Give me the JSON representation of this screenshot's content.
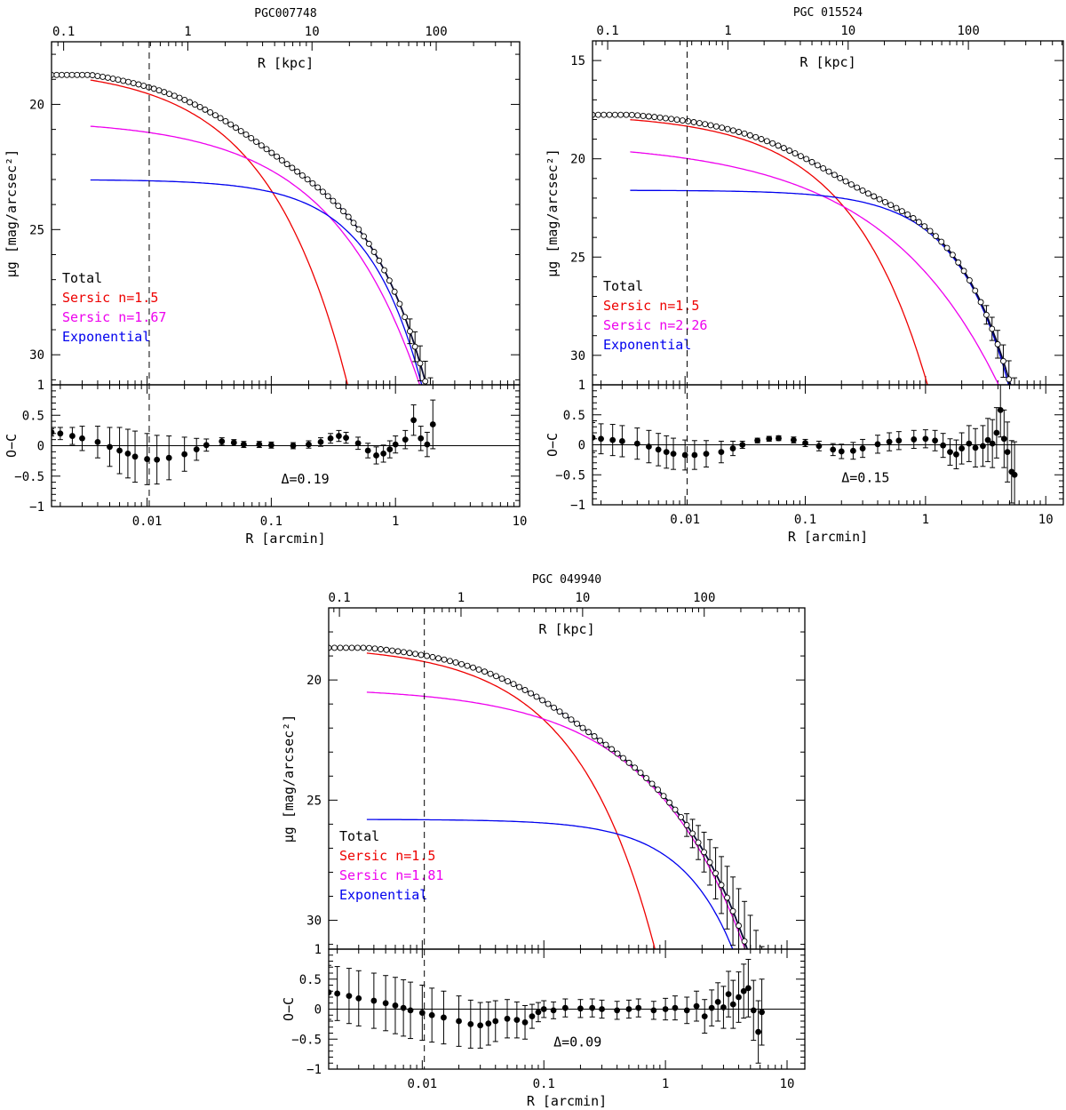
{
  "chart_data": [
    {
      "type": "line",
      "title": "PGC007748",
      "top_axis_label": "R [kpc]",
      "top_ticks": [
        0.1,
        1,
        10,
        100
      ],
      "top_tick_labels": [
        "0.1",
        "1",
        "10",
        "100"
      ],
      "kpc_per_arcmin": 47,
      "ylabel": "μg [mag/arcsec²]",
      "xlabel": "R [arcmin]",
      "residual_ylabel": "O−C",
      "xlim": [
        0.0017,
        10
      ],
      "ylim": [
        31.2,
        17.5
      ],
      "yticks": [
        20,
        25,
        30
      ],
      "ytick_labels": [
        "20",
        "25",
        "30"
      ],
      "residual_ylim": [
        -1,
        1
      ],
      "residual_yticks": [
        -1,
        -0.5,
        0,
        0.5,
        1
      ],
      "residual_ytick_labels": [
        "−1",
        "−0.5",
        "0",
        "0.5",
        "1"
      ],
      "xticks": [
        0.01,
        0.1,
        1,
        10
      ],
      "xtick_labels": [
        "0.01",
        "0.1",
        "1",
        "10"
      ],
      "vline_x": 0.0104,
      "delta_label": "Δ=0.19",
      "delta_x": 0.12,
      "log_x": true,
      "legend": [
        {
          "label": "Total",
          "color": "#000000"
        },
        {
          "label": "Sersic n=1.5",
          "color": "#ee0000"
        },
        {
          "label": "Sersic n=1.67",
          "color": "#ee00ee"
        },
        {
          "label": "Exponential",
          "color": "#0000ee"
        }
      ],
      "series": [
        {
          "name": "Sersic n=1.5",
          "color": "#ee0000",
          "mu0": 18.5,
          "re": 0.045,
          "n": 1.5,
          "x_start": 0.0035,
          "x_end": 10
        },
        {
          "name": "Sersic n=1.67",
          "color": "#ee00ee",
          "mu0": 20.6,
          "re": 0.22,
          "n": 1.67,
          "x_start": 0.0035,
          "x_end": 10
        },
        {
          "name": "Exponential",
          "color": "#0000ee",
          "mu0": 23.0,
          "re": 0.36,
          "n": 1,
          "x_start": 0.0035,
          "x_end": 10
        }
      ],
      "data_x_range": [
        0.0017,
        2.1
      ],
      "data_err_from_x": 1.2,
      "residual_points": [
        [
          0.0017,
          0.22
        ],
        [
          0.002,
          0.2
        ],
        [
          0.0025,
          0.16
        ],
        [
          0.003,
          0.12
        ],
        [
          0.004,
          0.06
        ],
        [
          0.005,
          -0.02
        ],
        [
          0.006,
          -0.08
        ],
        [
          0.007,
          -0.13
        ],
        [
          0.008,
          -0.18
        ],
        [
          0.01,
          -0.22
        ],
        [
          0.012,
          -0.23
        ],
        [
          0.015,
          -0.2
        ],
        [
          0.02,
          -0.14
        ],
        [
          0.025,
          -0.06
        ],
        [
          0.03,
          0.01
        ],
        [
          0.04,
          0.07
        ],
        [
          0.05,
          0.05
        ],
        [
          0.06,
          0.02
        ],
        [
          0.08,
          0.02
        ],
        [
          0.1,
          0.01
        ],
        [
          0.15,
          0.0
        ],
        [
          0.2,
          0.02
        ],
        [
          0.25,
          0.06
        ],
        [
          0.3,
          0.12
        ],
        [
          0.35,
          0.16
        ],
        [
          0.4,
          0.13
        ],
        [
          0.5,
          0.04
        ],
        [
          0.6,
          -0.08
        ],
        [
          0.7,
          -0.16
        ],
        [
          0.8,
          -0.13
        ],
        [
          0.9,
          -0.06
        ],
        [
          1.0,
          0.02
        ],
        [
          1.2,
          0.1
        ],
        [
          1.4,
          0.42
        ],
        [
          1.6,
          0.12
        ],
        [
          1.8,
          0.02
        ],
        [
          2.0,
          0.35
        ]
      ],
      "residual_err": [
        0.06,
        0.1,
        0.14,
        0.2,
        0.26,
        0.32,
        0.38,
        0.4,
        0.42,
        0.42,
        0.4,
        0.36,
        0.28,
        0.18,
        0.1,
        0.06,
        0.05,
        0.05,
        0.05,
        0.05,
        0.05,
        0.06,
        0.07,
        0.08,
        0.09,
        0.09,
        0.1,
        0.12,
        0.14,
        0.14,
        0.14,
        0.14,
        0.15,
        0.25,
        0.2,
        0.2,
        0.4
      ]
    },
    {
      "type": "line",
      "title": "PGC 015524",
      "top_axis_label": "R [kpc]",
      "top_ticks": [
        0.1,
        1,
        10,
        100
      ],
      "top_tick_labels": [
        "0.1",
        "1",
        "10",
        "100"
      ],
      "kpc_per_arcmin": 44,
      "ylabel": "μg [mag/arcsec²]",
      "xlabel": "R [arcmin]",
      "residual_ylabel": "O−C",
      "xlim": [
        0.0017,
        14
      ],
      "ylim": [
        31.5,
        14.0
      ],
      "yticks": [
        15,
        20,
        25,
        30
      ],
      "ytick_labels": [
        "15",
        "20",
        "25",
        "30"
      ],
      "residual_ylim": [
        -1,
        1
      ],
      "residual_yticks": [
        -1,
        -0.5,
        0,
        0.5,
        1
      ],
      "residual_ytick_labels": [
        "−1",
        "−0.5",
        "0",
        "0.5",
        "1"
      ],
      "xticks": [
        0.01,
        0.1,
        1,
        10
      ],
      "xtick_labels": [
        "0.01",
        "0.1",
        "1",
        "10"
      ],
      "vline_x": 0.0104,
      "delta_label": "Δ=0.15",
      "delta_x": 0.2,
      "log_x": true,
      "legend": [
        {
          "label": "Total",
          "color": "#000000"
        },
        {
          "label": "Sersic n=1.5",
          "color": "#ee0000"
        },
        {
          "label": "Sersic n=2.26",
          "color": "#ee00ee"
        },
        {
          "label": "Exponential",
          "color": "#0000ee"
        }
      ],
      "series": [
        {
          "name": "Sersic n=1.5",
          "color": "#ee0000",
          "mu0": 17.7,
          "re": 0.1,
          "n": 1.5,
          "x_start": 0.0035,
          "x_end": 14
        },
        {
          "name": "Sersic n=2.26",
          "color": "#ee00ee",
          "mu0": 19.1,
          "re": 0.42,
          "n": 2.26,
          "x_start": 0.0035,
          "x_end": 14
        },
        {
          "name": "Exponential",
          "color": "#0000ee",
          "mu0": 21.6,
          "re": 0.9,
          "n": 1,
          "x_start": 0.0035,
          "x_end": 14
        }
      ],
      "data_x_range": [
        0.0017,
        5.5
      ],
      "data_err_from_x": 3.0,
      "residual_points": [
        [
          0.0017,
          0.12
        ],
        [
          0.002,
          0.1
        ],
        [
          0.0025,
          0.08
        ],
        [
          0.003,
          0.06
        ],
        [
          0.004,
          0.02
        ],
        [
          0.005,
          -0.03
        ],
        [
          0.006,
          -0.08
        ],
        [
          0.007,
          -0.12
        ],
        [
          0.008,
          -0.15
        ],
        [
          0.01,
          -0.17
        ],
        [
          0.012,
          -0.17
        ],
        [
          0.015,
          -0.15
        ],
        [
          0.02,
          -0.12
        ],
        [
          0.025,
          -0.06
        ],
        [
          0.03,
          0.0
        ],
        [
          0.04,
          0.07
        ],
        [
          0.05,
          0.1
        ],
        [
          0.06,
          0.11
        ],
        [
          0.08,
          0.08
        ],
        [
          0.1,
          0.03
        ],
        [
          0.13,
          -0.02
        ],
        [
          0.17,
          -0.08
        ],
        [
          0.2,
          -0.11
        ],
        [
          0.25,
          -0.1
        ],
        [
          0.3,
          -0.06
        ],
        [
          0.4,
          0.01
        ],
        [
          0.5,
          0.05
        ],
        [
          0.6,
          0.07
        ],
        [
          0.8,
          0.09
        ],
        [
          1.0,
          0.1
        ],
        [
          1.2,
          0.07
        ],
        [
          1.4,
          -0.01
        ],
        [
          1.6,
          -0.12
        ],
        [
          1.8,
          -0.16
        ],
        [
          2.0,
          -0.06
        ],
        [
          2.3,
          0.02
        ],
        [
          2.6,
          -0.05
        ],
        [
          3.0,
          -0.02
        ],
        [
          3.3,
          0.08
        ],
        [
          3.6,
          0.02
        ],
        [
          3.9,
          0.2
        ],
        [
          4.2,
          0.58
        ],
        [
          4.5,
          0.1
        ],
        [
          4.8,
          -0.12
        ],
        [
          5.2,
          -0.45
        ],
        [
          5.5,
          -0.5
        ]
      ],
      "residual_err": [
        0.25,
        0.25,
        0.26,
        0.26,
        0.26,
        0.27,
        0.27,
        0.27,
        0.26,
        0.25,
        0.24,
        0.22,
        0.18,
        0.12,
        0.06,
        0.04,
        0.04,
        0.04,
        0.05,
        0.06,
        0.08,
        0.1,
        0.12,
        0.14,
        0.15,
        0.15,
        0.15,
        0.15,
        0.15,
        0.15,
        0.17,
        0.2,
        0.22,
        0.24,
        0.26,
        0.3,
        0.32,
        0.34,
        0.36,
        0.4,
        0.42,
        0.45,
        0.48,
        0.5,
        0.52,
        0.55
      ]
    },
    {
      "type": "line",
      "title": "PGC 049940",
      "top_axis_label": "R [kpc]",
      "top_ticks": [
        0.1,
        1,
        10,
        100
      ],
      "top_tick_labels": [
        "0.1",
        "1",
        "10",
        "100"
      ],
      "kpc_per_arcmin": 48,
      "ylabel": "μg [mag/arcsec²]",
      "xlabel": "R [arcmin]",
      "residual_ylabel": "O−C",
      "xlim": [
        0.0017,
        14
      ],
      "ylim": [
        31.2,
        17.0
      ],
      "yticks": [
        20,
        25,
        30
      ],
      "ytick_labels": [
        "20",
        "25",
        "30"
      ],
      "residual_ylim": [
        -1,
        1
      ],
      "residual_yticks": [
        -1,
        -0.5,
        0,
        0.5,
        1
      ],
      "residual_ytick_labels": [
        "−1",
        "−0.5",
        "0",
        "0.5",
        "1"
      ],
      "xticks": [
        0.01,
        0.1,
        1,
        10
      ],
      "xtick_labels": [
        "0.01",
        "0.1",
        "1",
        "10"
      ],
      "vline_x": 0.0104,
      "delta_label": "Δ=0.09",
      "delta_x": 0.12,
      "log_x": true,
      "legend": [
        {
          "label": "Total",
          "color": "#000000"
        },
        {
          "label": "Sersic n=1.5",
          "color": "#ee0000"
        },
        {
          "label": "Sersic n=1.81",
          "color": "#ee00ee"
        },
        {
          "label": "Exponential",
          "color": "#0000ee"
        }
      ],
      "series": [
        {
          "name": "Sersic n=1.5",
          "color": "#ee0000",
          "mu0": 18.55,
          "re": 0.09,
          "n": 1.5,
          "x_start": 0.0035,
          "x_end": 14
        },
        {
          "name": "Sersic n=1.81",
          "color": "#ee00ee",
          "mu0": 20.3,
          "re": 0.6,
          "n": 1.81,
          "x_start": 0.0035,
          "x_end": 14
        },
        {
          "name": "Exponential",
          "color": "#0000ee",
          "mu0": 25.8,
          "re": 1.2,
          "n": 1,
          "x_start": 0.0035,
          "x_end": 14
        }
      ],
      "data_x_range": [
        0.0017,
        6.2
      ],
      "data_err_from_x": 1.4,
      "residual_points": [
        [
          0.0017,
          0.28
        ],
        [
          0.002,
          0.26
        ],
        [
          0.0025,
          0.22
        ],
        [
          0.003,
          0.18
        ],
        [
          0.004,
          0.14
        ],
        [
          0.005,
          0.1
        ],
        [
          0.006,
          0.06
        ],
        [
          0.007,
          0.02
        ],
        [
          0.008,
          -0.02
        ],
        [
          0.01,
          -0.06
        ],
        [
          0.012,
          -0.1
        ],
        [
          0.015,
          -0.14
        ],
        [
          0.02,
          -0.2
        ],
        [
          0.025,
          -0.25
        ],
        [
          0.03,
          -0.27
        ],
        [
          0.035,
          -0.24
        ],
        [
          0.04,
          -0.2
        ],
        [
          0.05,
          -0.16
        ],
        [
          0.06,
          -0.18
        ],
        [
          0.07,
          -0.22
        ],
        [
          0.08,
          -0.12
        ],
        [
          0.09,
          -0.05
        ],
        [
          0.1,
          0.0
        ],
        [
          0.12,
          -0.02
        ],
        [
          0.15,
          0.02
        ],
        [
          0.2,
          0.01
        ],
        [
          0.25,
          0.02
        ],
        [
          0.3,
          0.0
        ],
        [
          0.4,
          -0.02
        ],
        [
          0.5,
          0.0
        ],
        [
          0.6,
          0.02
        ],
        [
          0.8,
          -0.02
        ],
        [
          1.0,
          0.0
        ],
        [
          1.2,
          0.02
        ],
        [
          1.5,
          -0.02
        ],
        [
          1.8,
          0.05
        ],
        [
          2.1,
          -0.12
        ],
        [
          2.4,
          0.02
        ],
        [
          2.7,
          0.12
        ],
        [
          3.0,
          0.03
        ],
        [
          3.3,
          0.25
        ],
        [
          3.6,
          0.08
        ],
        [
          4.0,
          0.2
        ],
        [
          4.4,
          0.3
        ],
        [
          4.8,
          0.35
        ],
        [
          5.3,
          -0.02
        ],
        [
          5.8,
          -0.38
        ],
        [
          6.2,
          -0.05
        ]
      ],
      "residual_err": [
        0.45,
        0.45,
        0.46,
        0.46,
        0.46,
        0.46,
        0.47,
        0.47,
        0.47,
        0.46,
        0.45,
        0.44,
        0.42,
        0.4,
        0.38,
        0.36,
        0.34,
        0.32,
        0.3,
        0.28,
        0.2,
        0.16,
        0.14,
        0.14,
        0.15,
        0.15,
        0.15,
        0.15,
        0.15,
        0.15,
        0.15,
        0.15,
        0.18,
        0.2,
        0.22,
        0.25,
        0.28,
        0.3,
        0.32,
        0.35,
        0.38,
        0.4,
        0.42,
        0.45,
        0.48,
        0.5,
        0.52,
        0.55
      ]
    }
  ]
}
